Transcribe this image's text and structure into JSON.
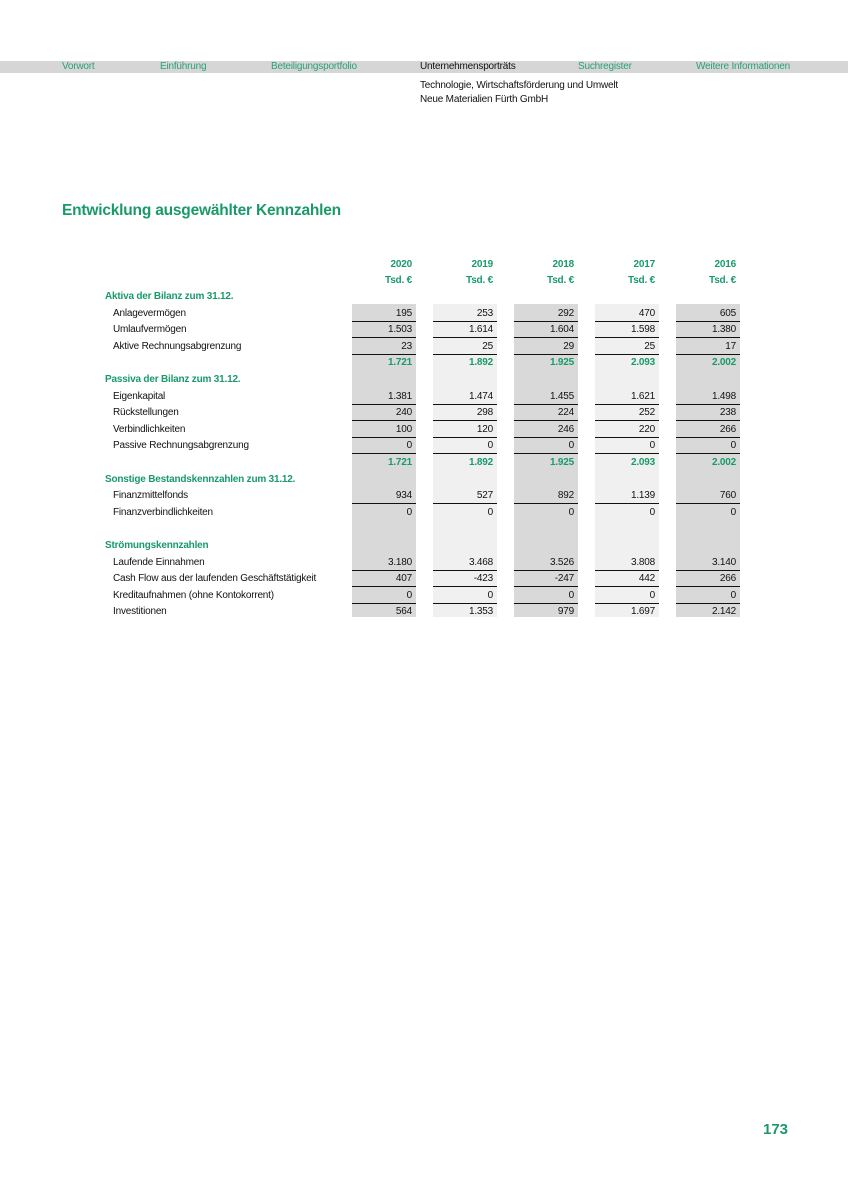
{
  "nav": {
    "items": [
      {
        "label": "Vorwort",
        "active": false
      },
      {
        "label": "Einführung",
        "active": false
      },
      {
        "label": "Beteiligungsportfolio",
        "active": false
      },
      {
        "label": "Unternehmensporträts",
        "active": true
      },
      {
        "label": "Suchregister",
        "active": false
      },
      {
        "label": "Weitere Informationen",
        "active": false
      }
    ]
  },
  "breadcrumb": {
    "category": "Technologie, Wirtschaftsförderung und Umwelt",
    "company": "Neue Materialien Fürth GmbH"
  },
  "title": "Entwicklung ausgewählter Kennzahlen",
  "table": {
    "years": [
      "2020",
      "2019",
      "2018",
      "2017",
      "2016"
    ],
    "unit": "Tsd. €",
    "column_shading": [
      "#d9d9d9",
      "#f0f0f0",
      "#d9d9d9",
      "#f0f0f0",
      "#d9d9d9"
    ],
    "rows": [
      {
        "type": "heading",
        "label": "Aktiva der Bilanz zum 31.12."
      },
      {
        "type": "item",
        "label": "Anlagevermögen",
        "values": [
          "195",
          "253",
          "292",
          "470",
          "605"
        ],
        "underline": true
      },
      {
        "type": "item",
        "label": "Umlaufvermögen",
        "values": [
          "1.503",
          "1.614",
          "1.604",
          "1.598",
          "1.380"
        ],
        "underline": true
      },
      {
        "type": "item",
        "label": "Aktive Rechnungsabgrenzung",
        "values": [
          "23",
          "25",
          "29",
          "25",
          "17"
        ],
        "underline": true
      },
      {
        "type": "total",
        "values": [
          "1.721",
          "1.892",
          "1.925",
          "2.093",
          "2.002"
        ]
      },
      {
        "type": "heading",
        "label": "Passiva der Bilanz zum 31.12."
      },
      {
        "type": "item",
        "label": "Eigenkapital",
        "values": [
          "1.381",
          "1.474",
          "1.455",
          "1.621",
          "1.498"
        ],
        "underline": true
      },
      {
        "type": "item",
        "label": "Rückstellungen",
        "values": [
          "240",
          "298",
          "224",
          "252",
          "238"
        ],
        "underline": true
      },
      {
        "type": "item",
        "label": "Verbindlichkeiten",
        "values": [
          "100",
          "120",
          "246",
          "220",
          "266"
        ],
        "underline": true
      },
      {
        "type": "item",
        "label": "Passive Rechnungsabgrenzung",
        "values": [
          "0",
          "0",
          "0",
          "0",
          "0"
        ],
        "underline": true
      },
      {
        "type": "total",
        "values": [
          "1.721",
          "1.892",
          "1.925",
          "2.093",
          "2.002"
        ]
      },
      {
        "type": "heading",
        "label": "Sonstige Bestandskennzahlen zum 31.12."
      },
      {
        "type": "item",
        "label": "Finanzmittelfonds",
        "values": [
          "934",
          "527",
          "892",
          "1.139",
          "760"
        ],
        "underline": true
      },
      {
        "type": "item",
        "label": "Finanzverbindlichkeiten",
        "values": [
          "0",
          "0",
          "0",
          "0",
          "0"
        ],
        "underline": false
      },
      {
        "type": "spacer"
      },
      {
        "type": "heading",
        "label": "Strömungskennzahlen"
      },
      {
        "type": "item",
        "label": "Laufende Einnahmen",
        "values": [
          "3.180",
          "3.468",
          "3.526",
          "3.808",
          "3.140"
        ],
        "underline": true
      },
      {
        "type": "item",
        "label": "Cash Flow aus der laufenden Geschäftstätigkeit",
        "values": [
          "407",
          "-423",
          "-247",
          "442",
          "266"
        ],
        "underline": true
      },
      {
        "type": "item",
        "label": "Kreditaufnahmen (ohne Kontokorrent)",
        "values": [
          "0",
          "0",
          "0",
          "0",
          "0"
        ],
        "underline": true
      },
      {
        "type": "item",
        "label": "Investitionen",
        "values": [
          "564",
          "1.353",
          "979",
          "1.697",
          "2.142"
        ],
        "underline": false
      }
    ]
  },
  "page_number": "173"
}
